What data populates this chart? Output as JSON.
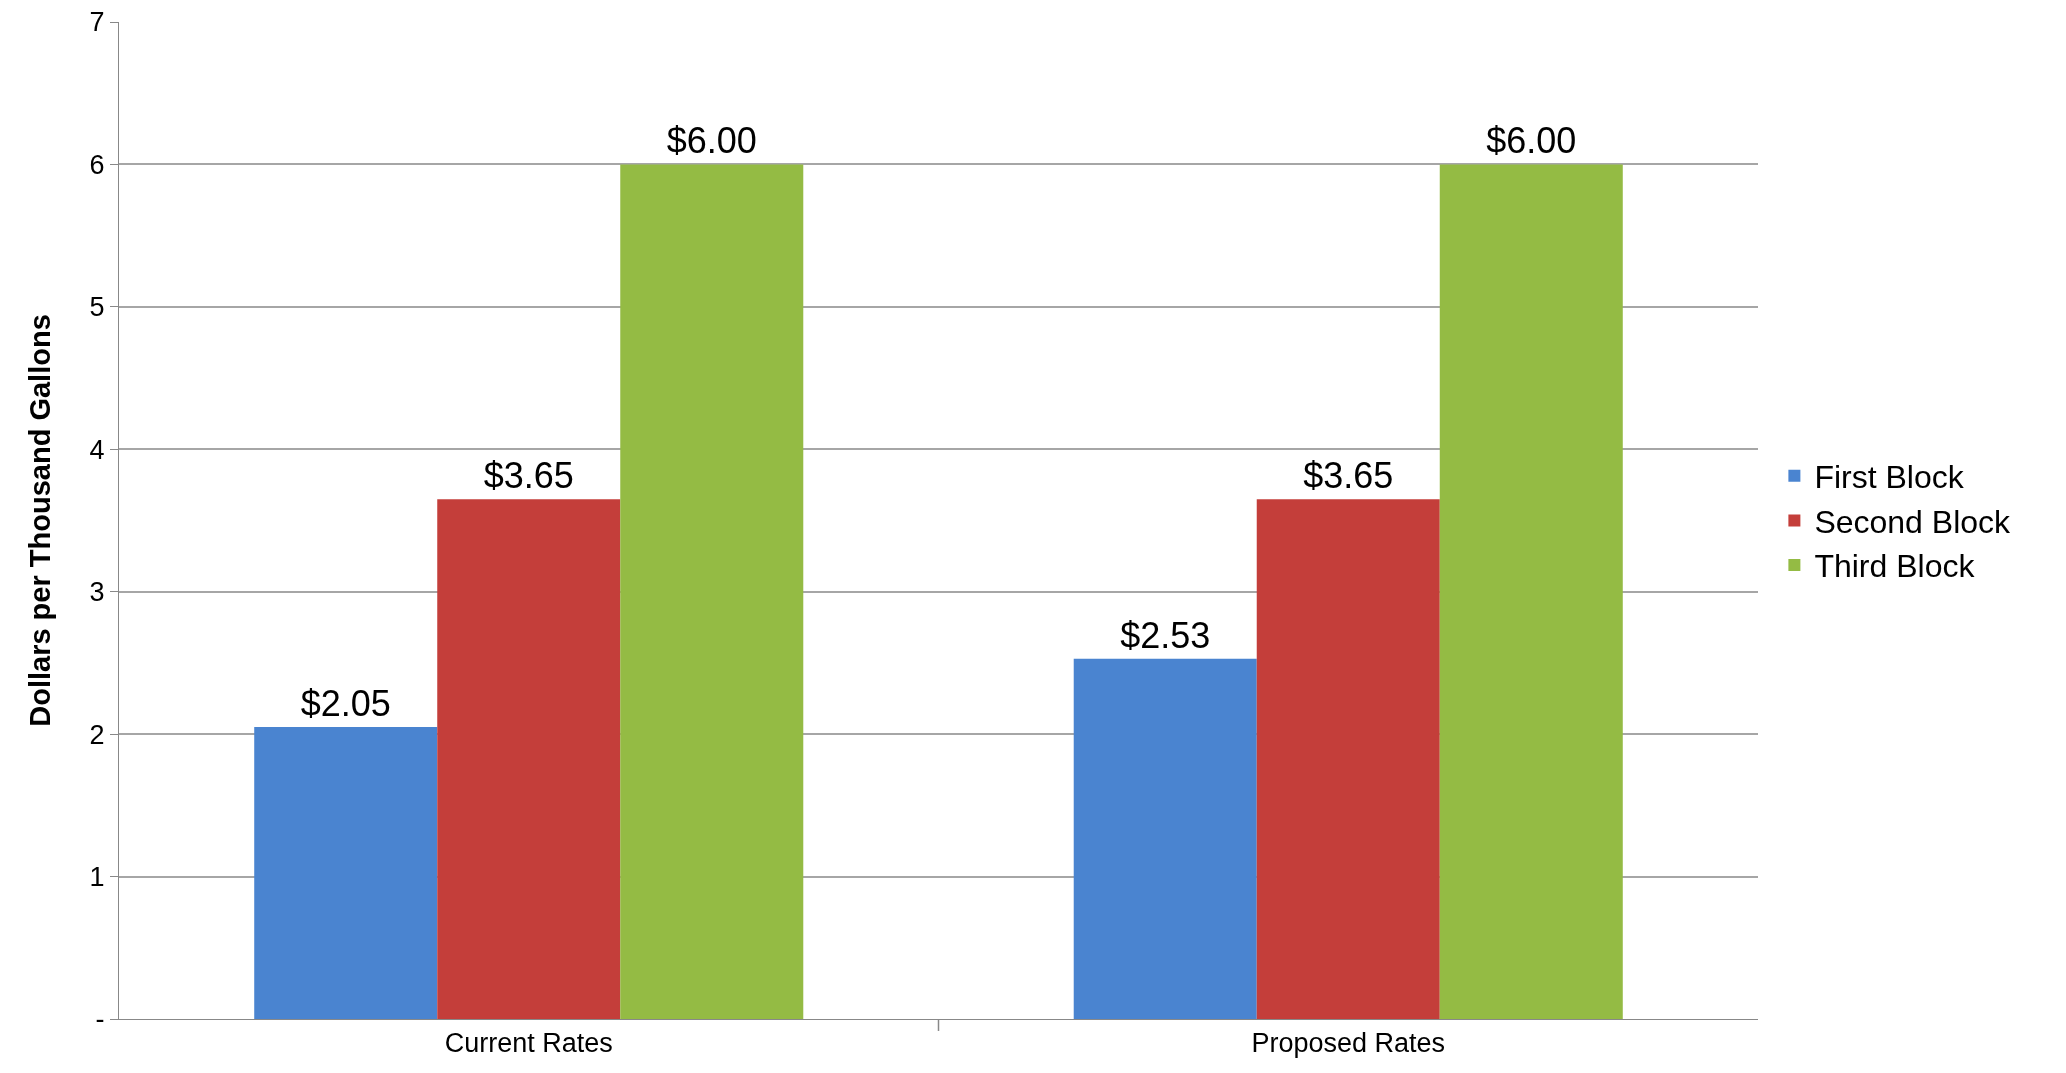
{
  "chart_data": {
    "type": "bar",
    "ylabel": "Dollars per Thousand Gallons",
    "categories": [
      "Current Rates",
      "Proposed Rates"
    ],
    "series": [
      {
        "name": "First Block",
        "color": "#4a84d0",
        "values": [
          2.05,
          2.53
        ],
        "value_labels": [
          "$2.05",
          "$2.53"
        ]
      },
      {
        "name": "Second Block",
        "color": "#c43e3a",
        "values": [
          3.65,
          3.65
        ],
        "value_labels": [
          "$3.65",
          "$3.65"
        ]
      },
      {
        "name": "Third Block",
        "color": "#94bb44",
        "values": [
          6.0,
          6.0
        ],
        "value_labels": [
          "$6.00",
          "$6.00"
        ]
      }
    ],
    "ylim": [
      0,
      7
    ],
    "yticks": [
      {
        "value": 0,
        "label": "-"
      },
      1,
      2,
      3,
      4,
      5,
      6,
      7
    ],
    "grid": "y",
    "legend": "right"
  }
}
